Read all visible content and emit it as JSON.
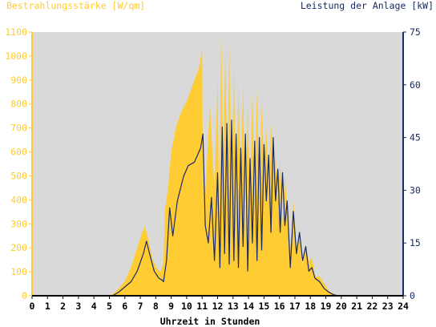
{
  "chart_data": {
    "type": "area",
    "title_left": "Bestrahlungsstärke [W/qm]",
    "title_right": "Leistung der Anlage [kW]",
    "xlabel": "Uhrzeit in Stunden",
    "xlim": [
      0,
      24
    ],
    "ylim_left": [
      0,
      1100
    ],
    "ylim_right": [
      0,
      75
    ],
    "x_ticks": [
      "0",
      "1",
      "2",
      "3",
      "4",
      "5",
      "6",
      "7",
      "8",
      "9",
      "10",
      "11",
      "12",
      "13",
      "14",
      "15",
      "16",
      "17",
      "18",
      "19",
      "20",
      "21",
      "22",
      "23",
      "24"
    ],
    "y_ticks_left": [
      "0",
      "100",
      "200",
      "300",
      "400",
      "500",
      "600",
      "700",
      "800",
      "900",
      "1000",
      "1100"
    ],
    "y_ticks_right": [
      "0",
      "15",
      "30",
      "45",
      "60",
      "75"
    ],
    "grid": false,
    "colors": {
      "plot_bg": "#d9d9d9",
      "irradiance_fill": "#ffcc33",
      "power_line": "#1a2a66",
      "left_axis_text": "#ffcc33",
      "right_axis_text": "#1a2a66",
      "x_axis_text": "#000000"
    },
    "series": [
      {
        "name": "Bestrahlungsstärke [W/qm]",
        "axis": "left",
        "kind": "area",
        "x": [
          0,
          5.0,
          5.3,
          5.6,
          6.0,
          6.4,
          6.8,
          7.1,
          7.3,
          7.5,
          7.8,
          8.1,
          8.3,
          8.5,
          8.6,
          8.8,
          9.0,
          9.3,
          9.6,
          10.0,
          10.4,
          10.8,
          11.0,
          11.05,
          11.2,
          11.5,
          11.8,
          12.0,
          12.1,
          12.25,
          12.35,
          12.5,
          12.65,
          12.75,
          12.9,
          13.05,
          13.2,
          13.35,
          13.5,
          13.65,
          13.8,
          13.95,
          14.1,
          14.25,
          14.4,
          14.55,
          14.7,
          14.85,
          15.0,
          15.15,
          15.3,
          15.45,
          15.6,
          15.75,
          15.9,
          16.05,
          16.2,
          16.35,
          16.5,
          16.7,
          16.9,
          17.1,
          17.3,
          17.5,
          17.7,
          17.9,
          18.1,
          18.3,
          18.6,
          18.9,
          19.2,
          19.5,
          19.8,
          20.0,
          24
        ],
        "values": [
          0,
          0,
          10,
          30,
          60,
          120,
          200,
          260,
          290,
          240,
          150,
          110,
          100,
          140,
          360,
          450,
          600,
          700,
          760,
          810,
          880,
          950,
          1030,
          500,
          420,
          800,
          430,
          900,
          300,
          1090,
          400,
          1030,
          420,
          1050,
          380,
          960,
          300,
          880,
          430,
          900,
          220,
          800,
          380,
          850,
          400,
          860,
          300,
          800,
          520,
          700,
          420,
          720,
          520,
          580,
          400,
          560,
          300,
          500,
          360,
          180,
          400,
          200,
          240,
          120,
          220,
          140,
          160,
          80,
          80,
          50,
          20,
          8,
          3,
          0,
          0
        ]
      },
      {
        "name": "Leistung der Anlage [kW]",
        "axis": "right",
        "kind": "line",
        "x": [
          0,
          5.2,
          5.6,
          6.0,
          6.4,
          6.8,
          7.2,
          7.4,
          7.6,
          7.9,
          8.2,
          8.4,
          8.5,
          8.7,
          8.9,
          9.1,
          9.4,
          9.8,
          10.1,
          10.5,
          10.9,
          11.05,
          11.2,
          11.4,
          11.6,
          11.8,
          12.0,
          12.15,
          12.3,
          12.45,
          12.6,
          12.75,
          12.9,
          13.05,
          13.2,
          13.35,
          13.5,
          13.65,
          13.8,
          13.95,
          14.1,
          14.25,
          14.4,
          14.55,
          14.7,
          14.85,
          15.0,
          15.15,
          15.3,
          15.45,
          15.6,
          15.75,
          15.9,
          16.05,
          16.2,
          16.35,
          16.5,
          16.7,
          16.9,
          17.1,
          17.3,
          17.5,
          17.7,
          17.9,
          18.1,
          18.3,
          18.6,
          18.9,
          19.2,
          19.5,
          19.8,
          20.0,
          24
        ],
        "values": [
          0,
          0,
          1,
          2.5,
          4,
          7,
          12,
          15.5,
          12,
          7,
          5,
          4.5,
          4,
          10,
          25,
          17,
          27,
          34,
          37,
          38,
          42,
          46,
          20,
          15,
          28,
          10,
          35,
          8,
          48,
          12,
          49,
          9,
          50,
          10,
          46,
          8,
          42,
          14,
          46,
          7,
          39,
          15,
          44,
          10,
          45,
          13,
          43,
          27,
          40,
          18,
          45,
          27,
          36,
          18,
          35,
          20,
          27,
          8,
          24,
          12,
          18,
          10,
          14,
          7,
          8,
          5,
          4,
          2,
          1,
          0.3,
          0,
          0,
          0
        ]
      }
    ]
  }
}
